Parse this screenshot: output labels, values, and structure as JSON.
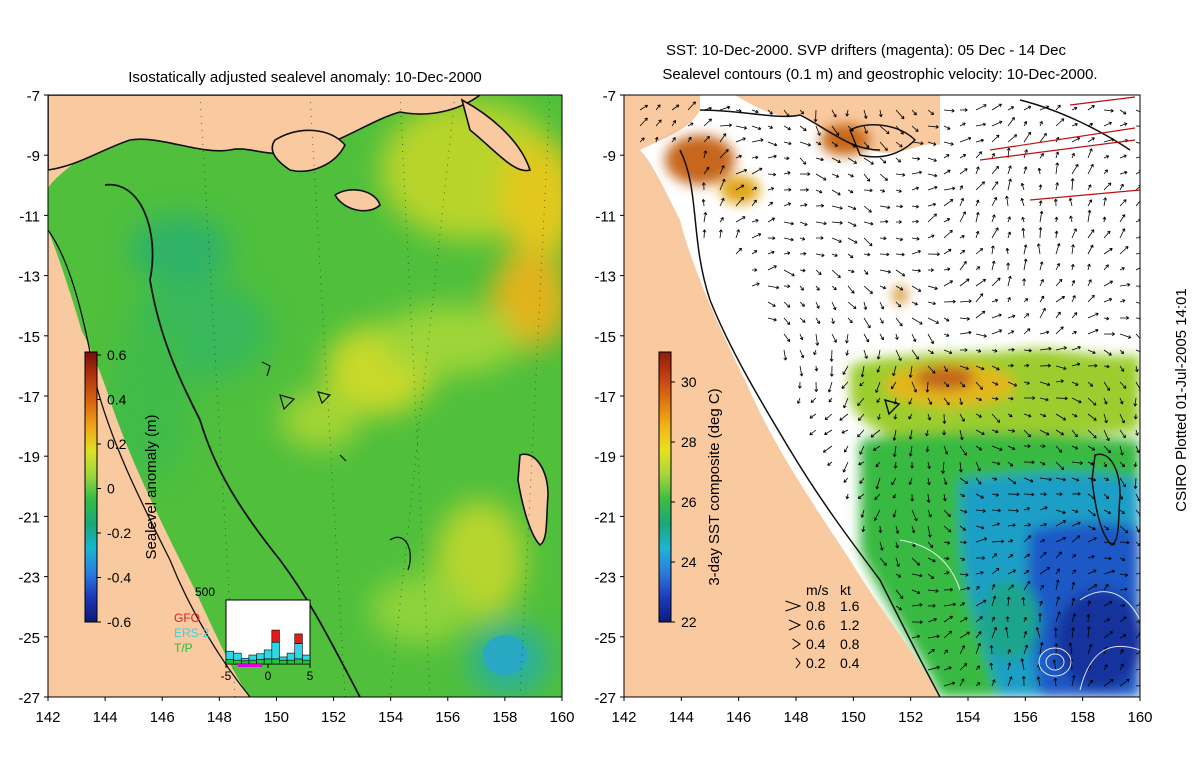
{
  "left_panel": {
    "title": "Isostatically adjusted sealevel anomaly: 10-Dec-2000",
    "colorbar": {
      "label": "Sealevel anomaly (m)",
      "ticks": [
        "0.6",
        "0.4",
        "0.2",
        "0",
        "-0.2",
        "-0.4",
        "-0.6"
      ],
      "colors": [
        "#7a0d0a",
        "#b3340f",
        "#d8640e",
        "#f0a316",
        "#dfe024",
        "#9dd83a",
        "#33bd46",
        "#19a878",
        "#17b6d1",
        "#2a7de0",
        "#1c36b8",
        "#0a1a74"
      ]
    },
    "histogram": {
      "ymax_label": "500",
      "x_ticks": [
        "-5",
        "0",
        "5"
      ],
      "legend": [
        {
          "label": "GFO",
          "color": "#e21b1b"
        },
        {
          "label": "ERS-2",
          "color": "#2ed6e6"
        },
        {
          "label": "T/P",
          "color": "#22c23a"
        }
      ],
      "bins": [
        {
          "gfo": 0,
          "ers": 65,
          "tp": 35
        },
        {
          "gfo": 0,
          "ers": 55,
          "tp": 30
        },
        {
          "gfo": 0,
          "ers": 20,
          "tp": 25
        },
        {
          "gfo": 0,
          "ers": 40,
          "tp": 30
        },
        {
          "gfo": 0,
          "ers": 45,
          "tp": 35
        },
        {
          "gfo": 0,
          "ers": 70,
          "tp": 40
        },
        {
          "gfo": 95,
          "ers": 130,
          "tp": 40
        },
        {
          "gfo": 0,
          "ers": 25,
          "tp": 30
        },
        {
          "gfo": 0,
          "ers": 55,
          "tp": 30
        },
        {
          "gfo": 75,
          "ers": 120,
          "tp": 40
        },
        {
          "gfo": 0,
          "ers": 40,
          "tp": 30
        }
      ]
    }
  },
  "right_panel": {
    "title_line1": "SST: 10-Dec-2000. SVP drifters (magenta): 05 Dec - 14 Dec",
    "title_line2": "Sealevel contours (0.1 m) and geostrophic velocity: 10-Dec-2000.",
    "colorbar": {
      "label": "3-day SST composite (deg C)",
      "ticks": [
        "30",
        "28",
        "26",
        "24",
        "22"
      ],
      "colors": [
        "#8b1c0b",
        "#c43e12",
        "#e0750f",
        "#f2b314",
        "#e6e220",
        "#a6d63a",
        "#3dbd42",
        "#1aa87a",
        "#1fb4d2",
        "#2b7bdc",
        "#1b3cbc",
        "#0b1c7a"
      ]
    },
    "velocity_legend": {
      "units_ms": "m/s",
      "units_kt": "kt",
      "rows": [
        {
          "ms": "0.8",
          "kt": "1.6"
        },
        {
          "ms": "0.6",
          "kt": "1.2"
        },
        {
          "ms": "0.4",
          "kt": "0.8"
        },
        {
          "ms": "0.2",
          "kt": "0.4"
        }
      ]
    }
  },
  "axes": {
    "lat_ticks": [
      "-7",
      "-9",
      "-11",
      "-13",
      "-15",
      "-17",
      "-19",
      "-21",
      "-23",
      "-25",
      "-27"
    ],
    "lon_ticks": [
      "142",
      "144",
      "146",
      "148",
      "150",
      "152",
      "154",
      "156",
      "158",
      "160"
    ]
  },
  "credit": "CSIRO Plotted 01-Jul-2005 14:01",
  "colors": {
    "land": "#f9c9a0",
    "ocean_green": "#2fbf43",
    "shelf_green": "#55c53a",
    "yellow": "#e7e021",
    "warm": "#c9761d",
    "blue_deep": "#16379c",
    "blue_mid": "#1f78d8"
  }
}
